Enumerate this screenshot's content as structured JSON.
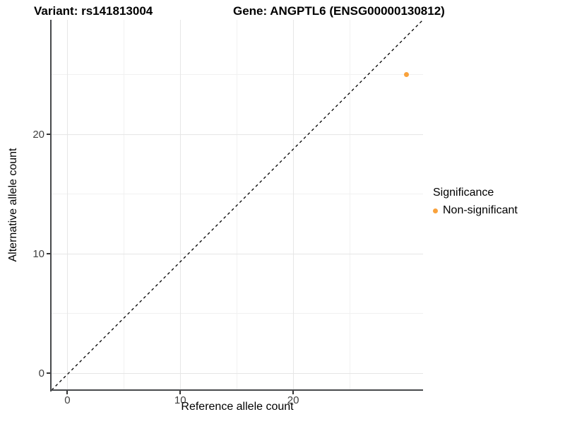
{
  "chart_data": {
    "type": "scatter",
    "title_variant": "Variant: rs141813004",
    "title_gene": "Gene: ANGPTL6 (ENSG00000130812)",
    "xlabel": "Reference allele count",
    "ylabel": "Alternative allele count",
    "x_ticks": [
      0,
      10,
      20
    ],
    "y_ticks": [
      0,
      10,
      20
    ],
    "x_minor_gridlines": [
      5,
      15,
      25
    ],
    "y_minor_gridlines": [
      5,
      15,
      25
    ],
    "xlim": [
      -1.4,
      31.5
    ],
    "ylim": [
      -1.4,
      29.6
    ],
    "grid": true,
    "series": [
      {
        "name": "Non-significant",
        "color": "#F9A23C",
        "points": [
          {
            "x": 30,
            "y": 25
          }
        ]
      }
    ],
    "reference_line": {
      "kind": "identity y = x",
      "style": "dashed",
      "color": "#000000"
    },
    "legend": {
      "title": "Significance",
      "position": "right",
      "entries": [
        {
          "label": "Non-significant",
          "color": "#F9A23C"
        }
      ]
    }
  },
  "colors": {
    "background": "#FFFFFF",
    "grid_major": "#E6E6E6",
    "grid_minor": "#F1F1F1",
    "axis_line": "#47494C",
    "tick_label": "#404040",
    "text": "#000000"
  }
}
